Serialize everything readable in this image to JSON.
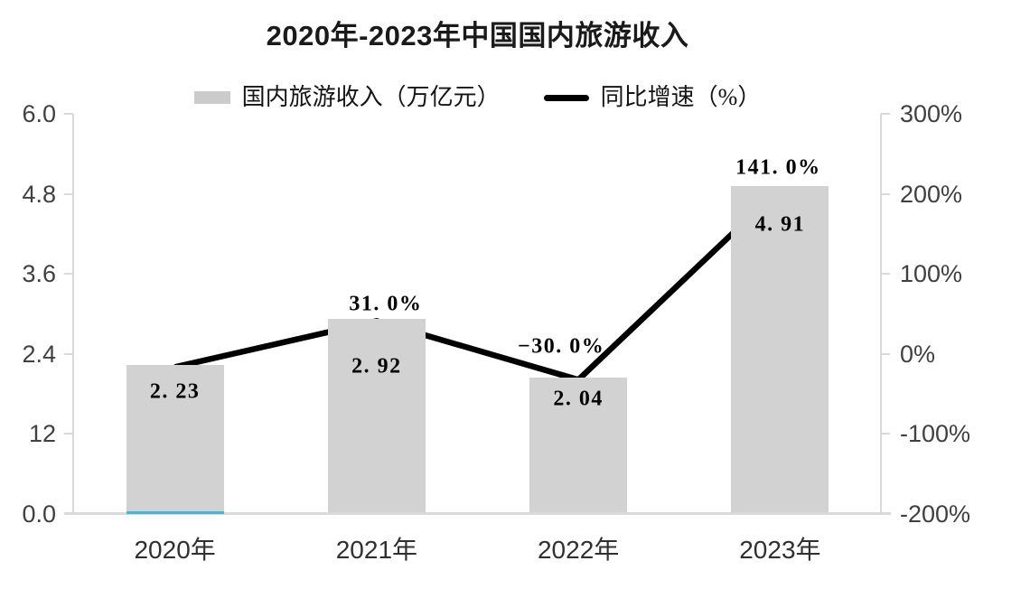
{
  "title": "2020年-2023年中国国内旅游收入",
  "legend": {
    "items": [
      {
        "swatch": "bar",
        "label": "国内旅游收入（万亿元）"
      },
      {
        "swatch": "line",
        "label": "同比增速（%）"
      }
    ]
  },
  "chart_data": {
    "type": "bar+line",
    "title": "2020年-2023年中国国内旅游收入",
    "categories": [
      "2020年",
      "2021年",
      "2022年",
      "2023年"
    ],
    "series": [
      {
        "name": "国内旅游收入（万亿元）",
        "type": "bar",
        "axis": "left",
        "values": [
          2.23,
          2.92,
          2.04,
          4.91
        ],
        "data_labels": [
          "2. 23",
          "2. 92",
          "2. 04",
          "4. 91"
        ],
        "color": "#d2d2d2"
      },
      {
        "name": "同比增速（%）",
        "type": "line",
        "axis": "right",
        "values": [
          null,
          31.0,
          -30.0,
          141.0
        ],
        "data_labels": [
          "",
          "31. 0%",
          "−30. 0%",
          "141. 0%"
        ],
        "color": "#000000",
        "note": "line vertices drawn at bar tops (left-axis values 2.23, 2.92, 2.04, 4.91)"
      }
    ],
    "left_axis": {
      "tick_labels": [
        "6.0",
        "4.8",
        "3.6",
        "2.4",
        "12",
        "0.0"
      ],
      "min": 0,
      "max": 6
    },
    "right_axis": {
      "tick_labels": [
        "300%",
        "200%",
        "100%",
        "0%",
        "-100%",
        "-200%"
      ],
      "min": -200,
      "max": 300
    },
    "grid": false,
    "legend_position": "top"
  },
  "colors": {
    "bar": "#d2d2d2",
    "line": "#000000",
    "axis": "#d9d9d9",
    "tick_label": "#404040",
    "title": "#1a1a1a",
    "cyan_strip": "#3eb7da",
    "background": "#ffffff"
  }
}
